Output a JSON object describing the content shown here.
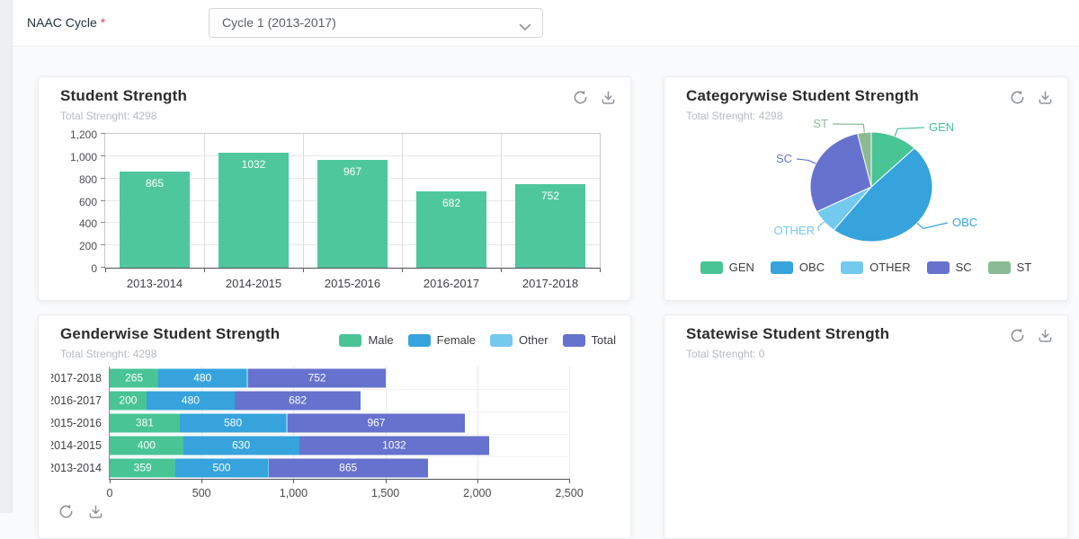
{
  "topbar": {
    "label": "NAAC Cycle",
    "required": "*",
    "dropdown": {
      "value": "Cycle 1 (2013-2017)"
    }
  },
  "cards": {
    "student_strength": {
      "title": "Student Strength",
      "subtitle": "Total Strenght: 4298"
    },
    "categorywise": {
      "title": "Categorywise Student Strength",
      "subtitle": "Total Strenght: 4298"
    },
    "genderwise": {
      "title": "Genderwise Student Strength",
      "subtitle": "Total Strenght: 4298"
    },
    "statewise": {
      "title": "Statewise Student Strength",
      "subtitle": "Total Strenght: 0"
    }
  },
  "colors": {
    "green": "#48c495",
    "blue": "#36a3dc",
    "light_blue": "#74c9ef",
    "purple": "#6672cd",
    "sage": "#8abb94",
    "bar_green": "#4fc79d",
    "icon_gray": "#8f9399"
  },
  "chart_data": [
    {
      "id": "student_strength",
      "type": "bar",
      "title": "Student Strength",
      "categories": [
        "2013-2014",
        "2014-2015",
        "2015-2016",
        "2016-2017",
        "2017-2018"
      ],
      "values": [
        865,
        1032,
        967,
        682,
        752
      ],
      "bar_color": "#4fc79d",
      "yticks": [
        "0",
        "200",
        "400",
        "600",
        "800",
        "1,000",
        "1,200"
      ],
      "ylim": [
        0,
        1200
      ],
      "grid": true,
      "value_labels": true
    },
    {
      "id": "categorywise",
      "type": "pie",
      "title": "Categorywise Student Strength",
      "labels": [
        "GEN",
        "OBC",
        "OTHER",
        "SC",
        "ST"
      ],
      "values": [
        537,
        2064,
        300,
        1242,
        155
      ],
      "total": 4298,
      "values_estimated_from_slice_angles": true,
      "colors": [
        "#48c495",
        "#36a3dc",
        "#74c9ef",
        "#6672cd",
        "#8abb94"
      ],
      "legend_position": "bottom"
    },
    {
      "id": "genderwise",
      "type": "stacked-bar-horizontal",
      "title": "Genderwise Student Strength",
      "categories": [
        "2017-2018",
        "2016-2017",
        "2015-2016",
        "2014-2015",
        "2013-2014"
      ],
      "series": [
        {
          "name": "Male",
          "color": "#48c495",
          "values": [
            265,
            200,
            381,
            400,
            359
          ]
        },
        {
          "name": "Female",
          "color": "#36a3dc",
          "values": [
            480,
            480,
            580,
            630,
            500
          ]
        },
        {
          "name": "Other",
          "color": "#74c9ef",
          "values": [
            7,
            2,
            6,
            2,
            6
          ]
        },
        {
          "name": "Total",
          "color": "#6672cd",
          "values": [
            752,
            682,
            967,
            1032,
            865
          ]
        }
      ],
      "xticks": [
        "0",
        "500",
        "1,000",
        "1,500",
        "2,000",
        "2,500"
      ],
      "xlim": [
        0,
        2500
      ],
      "legend_position": "top-right"
    }
  ]
}
